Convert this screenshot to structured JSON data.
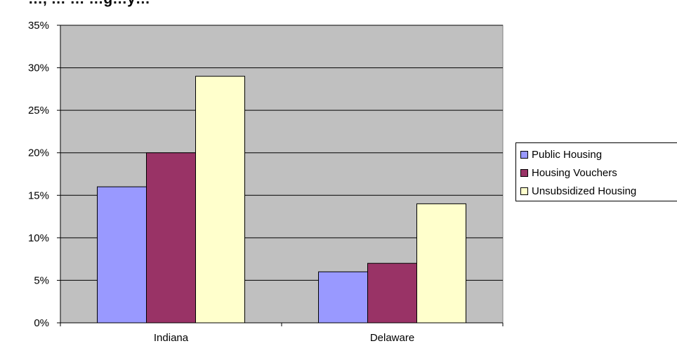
{
  "chart_data": {
    "type": "bar",
    "title": "…, … … …g…y…",
    "xlabel": "",
    "ylabel": "",
    "categories": [
      "Indiana",
      "Delaware"
    ],
    "series": [
      {
        "name": "Public Housing",
        "values": [
          0.16,
          0.06
        ],
        "color": "#9999ff"
      },
      {
        "name": "Housing Vouchers",
        "values": [
          0.2,
          0.07
        ],
        "color": "#993366"
      },
      {
        "name": "Unsubsidized Housing",
        "values": [
          0.29,
          0.14
        ],
        "color": "#ffffcc"
      }
    ],
    "ylim": [
      0,
      0.35
    ],
    "yticks": [
      "0%",
      "5%",
      "10%",
      "15%",
      "20%",
      "25%",
      "30%",
      "35%"
    ],
    "grid": true,
    "legend_position": "right",
    "plot_background": "#c0c0c0"
  }
}
